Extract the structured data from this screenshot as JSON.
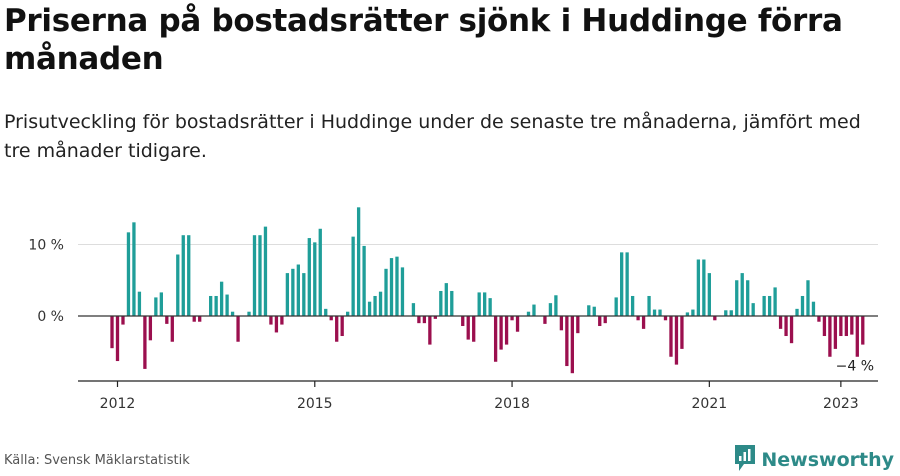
{
  "header": {
    "title": "Priserna på bostadsrätter sjönk i Huddinge förra månaden",
    "subtitle": "Prisutveckling för bostadsrätter i Huddinge under de senaste tre månaderna, jämfört med tre månader tidigare."
  },
  "footer": {
    "source": "Källa: Svensk Mäklarstatistik",
    "brand": "Newsworthy"
  },
  "colors": {
    "positive": "#1f9e99",
    "negative": "#9b0f4e",
    "gridline": "#dddddd",
    "zeroline": "#333333",
    "brand": "#2d8a88"
  },
  "icons": {
    "brand_logo": "newsworthy-logo-icon"
  },
  "chart_data": {
    "type": "bar",
    "title": "Priserna på bostadsrätter sjönk i Huddinge förra månaden",
    "subtitle": "Prisutveckling för bostadsrätter i Huddinge under de senaste tre månaderna, jämfört med tre månader tidigare.",
    "unit": "%",
    "x_start": "2011-12",
    "x_end": "2023-03",
    "xticks": [
      {
        "x": "2012-01",
        "label": "2012"
      },
      {
        "x": "2015-01",
        "label": "2015"
      },
      {
        "x": "2018-01",
        "label": "2018"
      },
      {
        "x": "2021-01",
        "label": "2021"
      },
      {
        "x": "2023-01",
        "label": "2023"
      }
    ],
    "yticks": [
      {
        "value": 10,
        "label": "10 %"
      },
      {
        "value": 0,
        "label": "0 %"
      }
    ],
    "ylim": [
      -9,
      15
    ],
    "grid": true,
    "annotation": {
      "x": "2023-01",
      "label": "−4 %"
    },
    "values": [
      -4.5,
      -6.3,
      -1.2,
      11.7,
      13.1,
      3.4,
      -7.4,
      -3.4,
      2.6,
      3.3,
      -1.1,
      -3.6,
      8.6,
      11.3,
      11.3,
      -0.8,
      -0.8,
      0,
      2.8,
      2.8,
      4.8,
      3,
      0.6,
      -3.6,
      0,
      0.6,
      11.3,
      11.3,
      12.5,
      -1.2,
      -2.3,
      -1.2,
      6,
      6.6,
      7.2,
      6,
      10.9,
      10.3,
      12.2,
      1,
      -0.6,
      -3.6,
      -2.8,
      0.6,
      11.1,
      15.2,
      9.8,
      2,
      2.8,
      3.4,
      6.6,
      8.1,
      8.3,
      6.8,
      0,
      1.8,
      -1,
      -1,
      -4,
      -0.4,
      3.5,
      4.6,
      3.5,
      0,
      -1.4,
      -3.3,
      -3.6,
      3.3,
      3.3,
      2.5,
      -6.4,
      -4.7,
      -4,
      -0.6,
      -2.2,
      0,
      0.6,
      1.6,
      0,
      -1.1,
      1.8,
      2.9,
      -2,
      -7,
      -8,
      -2.4,
      0,
      1.5,
      1.3,
      -1.4,
      -1,
      0,
      2.6,
      8.9,
      8.9,
      2.8,
      -0.6,
      -1.8,
      2.8,
      0.9,
      0.9,
      -0.6,
      -5.7,
      -6.8,
      -4.6,
      0.5,
      0.9,
      7.9,
      7.9,
      6,
      -0.6,
      0,
      0.8,
      0.8,
      5,
      6,
      5,
      1.8,
      0,
      2.8,
      2.8,
      4,
      -1.8,
      -2.8,
      -3.8,
      1,
      2.8,
      5,
      2,
      -0.8,
      -2.8,
      -5.7,
      -4.6,
      -2.8,
      -2.8,
      -2.6,
      -5.7,
      -4
    ]
  }
}
